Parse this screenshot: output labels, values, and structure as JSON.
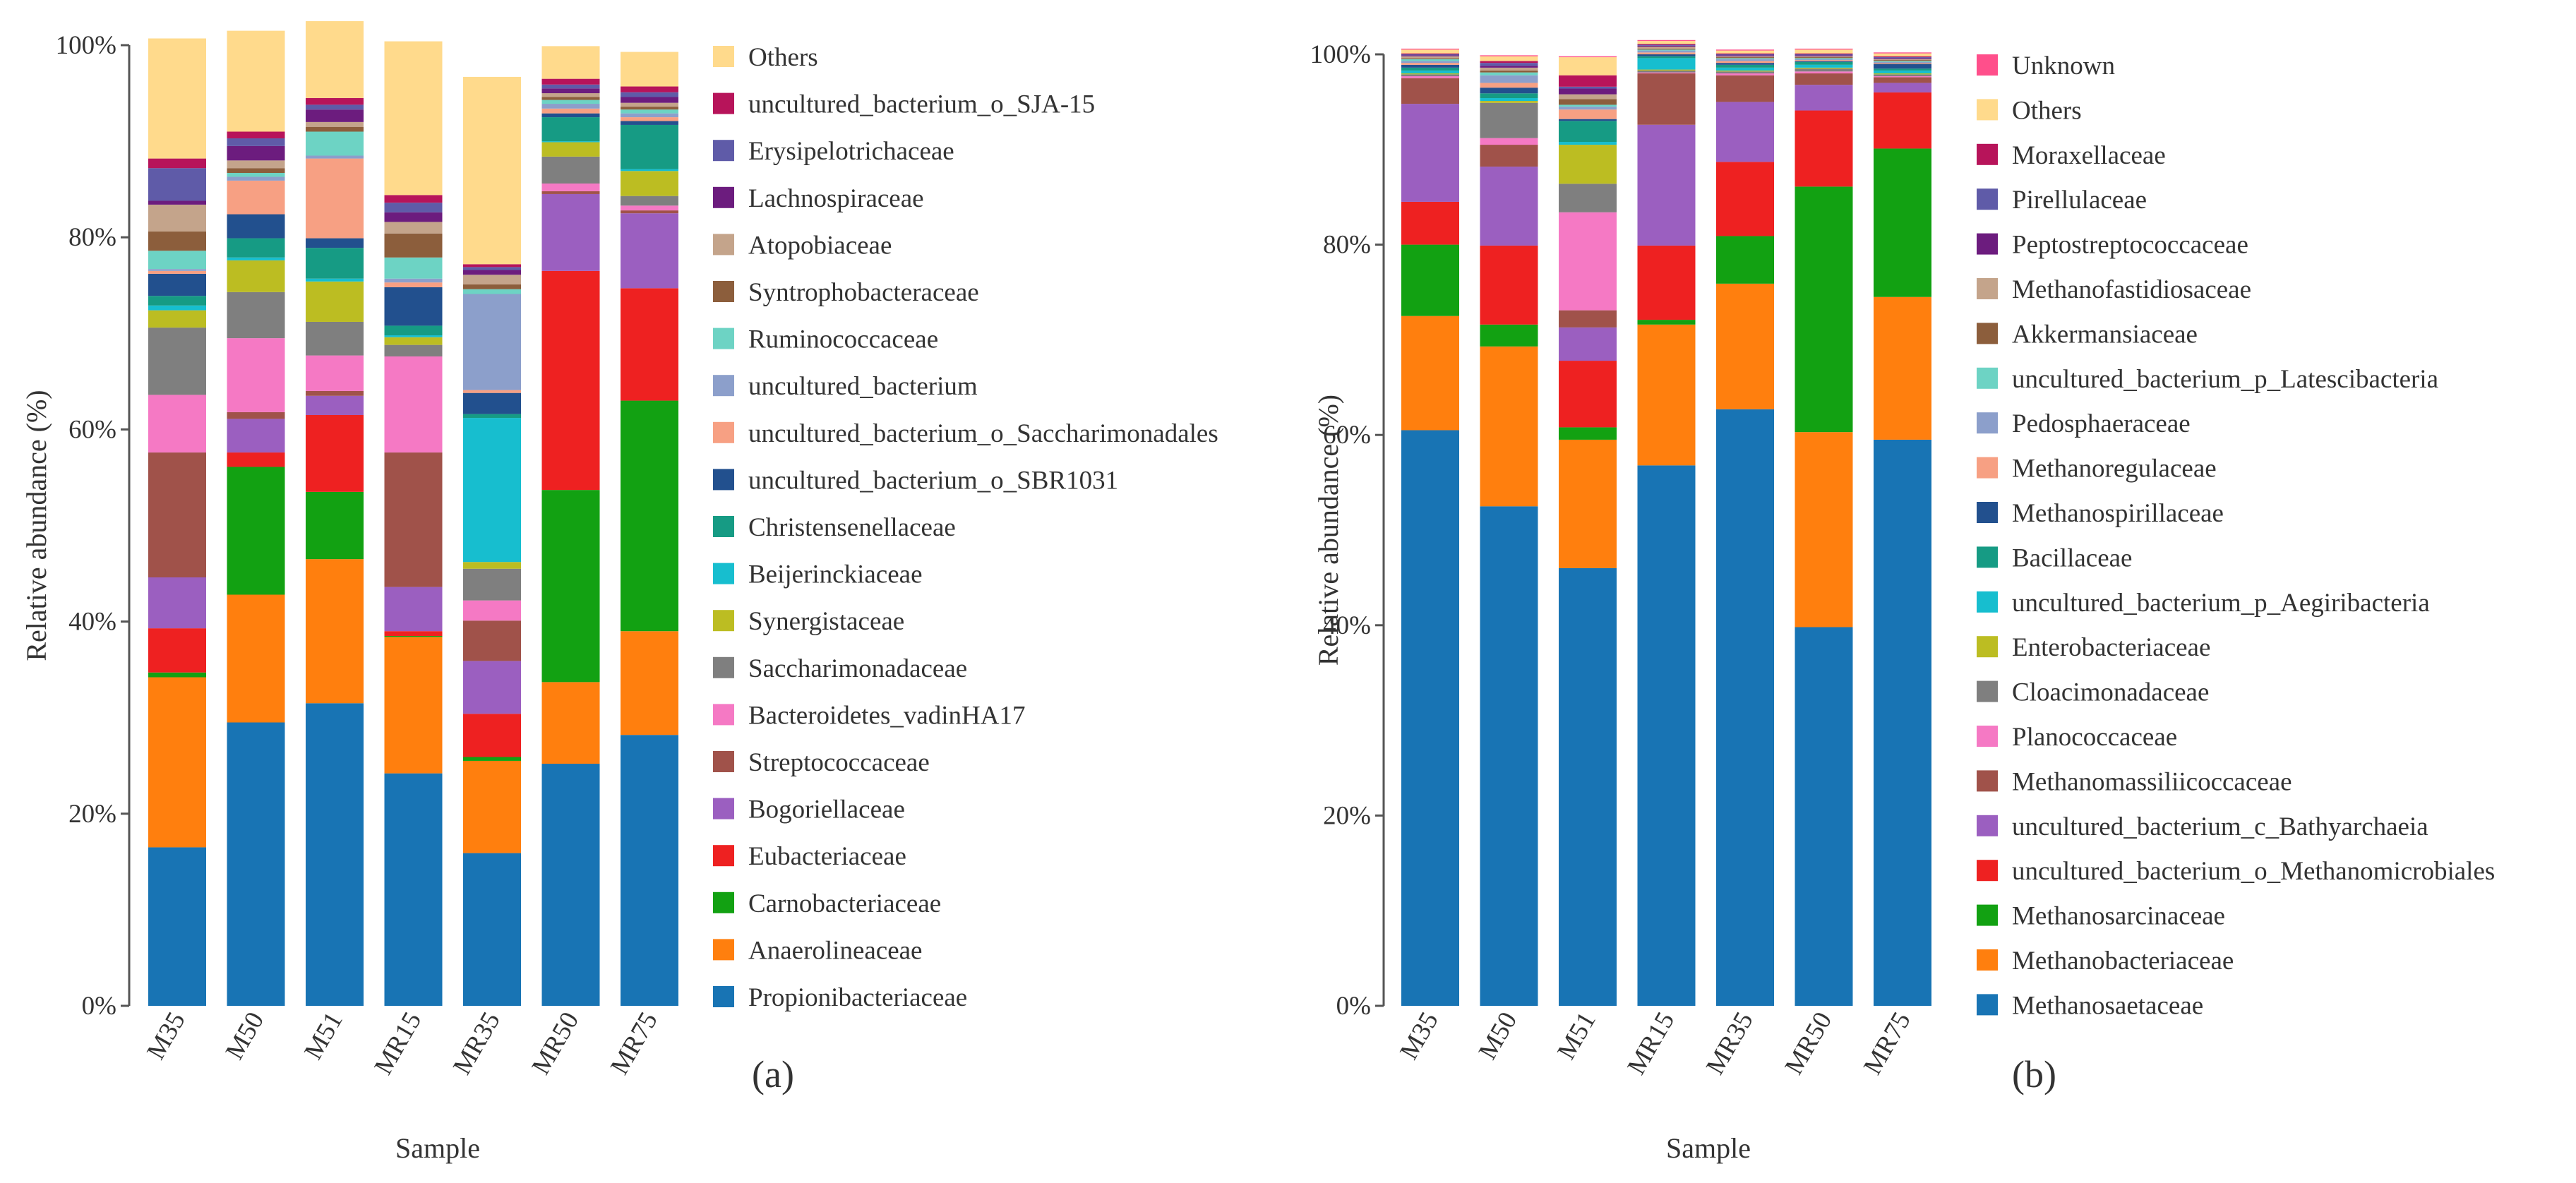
{
  "chart_data": [
    {
      "type": "bar",
      "stacked": true,
      "panel_label": "(a)",
      "xlabel": "Sample",
      "ylabel": "Relative abundance (%)",
      "ylim": [
        0,
        100
      ],
      "y_ticks": [
        "0%",
        "20%",
        "40%",
        "60%",
        "80%",
        "100%"
      ],
      "categories": [
        "M35",
        "M50",
        "M51",
        "MR15",
        "MR35",
        "MR50",
        "MR75"
      ],
      "series": [
        {
          "name": "Propionibacteriaceae",
          "color": "#1874B4",
          "values": [
            16.5,
            29.5,
            31.5,
            24.2,
            15.9,
            25.2,
            28.2
          ]
        },
        {
          "name": "Anaerolineaceae",
          "color": "#FF7F0E",
          "values": [
            17.7,
            13.3,
            15.0,
            14.2,
            9.6,
            8.5,
            10.8
          ]
        },
        {
          "name": "Carnobacteriaceae",
          "color": "#12A112",
          "values": [
            0.5,
            13.3,
            7.0,
            0.1,
            0.4,
            20.0,
            24.0
          ]
        },
        {
          "name": "Eubacteriaceae",
          "color": "#EE2121",
          "values": [
            4.6,
            1.5,
            8.0,
            0.5,
            4.5,
            22.8,
            11.7
          ]
        },
        {
          "name": "Bogoriellaceae",
          "color": "#9B5FC0",
          "values": [
            5.3,
            3.5,
            2.0,
            4.6,
            5.5,
            8.0,
            7.8
          ]
        },
        {
          "name": "Streptococcaceae",
          "color": "#A0524A",
          "values": [
            13.0,
            0.7,
            0.5,
            14.0,
            4.2,
            0.3,
            0.3
          ]
        },
        {
          "name": "Bacteroidetes_vadinHA17",
          "color": "#F579C4",
          "values": [
            6.0,
            7.7,
            3.7,
            10.0,
            2.1,
            0.8,
            0.5
          ]
        },
        {
          "name": "Saccharimonadaceae",
          "color": "#7F7F7F",
          "values": [
            7.0,
            4.8,
            3.5,
            1.2,
            3.3,
            2.8,
            1.0
          ]
        },
        {
          "name": "Synergistaceae",
          "color": "#BCBD22",
          "values": [
            1.8,
            3.3,
            4.2,
            0.8,
            0.7,
            1.5,
            2.6
          ]
        },
        {
          "name": "Beijerinckiaceae",
          "color": "#17BECF",
          "values": [
            0.5,
            0.3,
            0.3,
            0.2,
            15.0,
            0.1,
            0.2
          ]
        },
        {
          "name": "Christensenellaceae",
          "color": "#169B84",
          "values": [
            1.0,
            2.0,
            3.2,
            1.0,
            0.4,
            2.5,
            4.6
          ]
        },
        {
          "name": "uncultured_bacterium_o_SBR1031",
          "color": "#22508E",
          "values": [
            2.3,
            2.5,
            1.0,
            4.0,
            2.2,
            0.4,
            0.4
          ]
        },
        {
          "name": "uncultured_bacterium_o_Saccharimonadales",
          "color": "#F7A083",
          "values": [
            0.3,
            3.5,
            8.3,
            0.5,
            0.3,
            0.5,
            0.4
          ]
        },
        {
          "name": "uncultured_bacterium",
          "color": "#8C9FCB",
          "values": [
            0.2,
            0.4,
            0.3,
            0.4,
            10.0,
            0.5,
            0.4
          ]
        },
        {
          "name": "Ruminococcaceae",
          "color": "#6DD3C4",
          "values": [
            1.9,
            0.4,
            2.5,
            2.2,
            0.5,
            0.4,
            0.4
          ]
        },
        {
          "name": "Syntrophobacteraceae",
          "color": "#8C5E3C",
          "values": [
            2.0,
            0.5,
            0.5,
            2.5,
            0.5,
            0.3,
            0.3
          ]
        },
        {
          "name": "Atopobiaceae",
          "color": "#C4A48B",
          "values": [
            2.8,
            0.8,
            0.5,
            1.2,
            1.0,
            0.4,
            0.4
          ]
        },
        {
          "name": "Lachnospiraceae",
          "color": "#6C1C7E",
          "values": [
            0.4,
            1.5,
            1.3,
            1.0,
            0.5,
            0.5,
            0.6
          ]
        },
        {
          "name": "Erysipelotrichaceae",
          "color": "#5F5BA8",
          "values": [
            3.4,
            0.8,
            0.5,
            1.0,
            0.3,
            0.4,
            0.5
          ]
        },
        {
          "name": "uncultured_bacterium_o_SJA-15",
          "color": "#B7145A",
          "values": [
            1.0,
            0.7,
            0.7,
            0.8,
            0.3,
            0.6,
            0.6
          ]
        },
        {
          "name": "Others",
          "color": "#FFDA8C",
          "values": [
            12.5,
            10.5,
            8.0,
            16.0,
            19.5,
            3.4,
            3.6
          ]
        }
      ]
    },
    {
      "type": "bar",
      "stacked": true,
      "panel_label": "(b)",
      "xlabel": "Sample",
      "ylabel": "Relative abundance (%)",
      "ylim": [
        0,
        100
      ],
      "y_ticks": [
        "0%",
        "20%",
        "40%",
        "60%",
        "80%",
        "100%"
      ],
      "categories": [
        "M35",
        "M50",
        "M51",
        "MR15",
        "MR35",
        "MR50",
        "MR75"
      ],
      "series": [
        {
          "name": "Methanosaetaceae",
          "color": "#1874B4",
          "values": [
            60.5,
            52.5,
            46.0,
            56.8,
            62.7,
            39.8,
            59.5
          ]
        },
        {
          "name": "Methanobacteriaceae",
          "color": "#FF7F0E",
          "values": [
            12.0,
            16.8,
            13.5,
            14.8,
            13.2,
            20.5,
            15.0
          ]
        },
        {
          "name": "Methanosarcinaceae",
          "color": "#12A112",
          "values": [
            7.5,
            2.3,
            1.3,
            0.5,
            5.0,
            25.8,
            15.6
          ]
        },
        {
          "name": "uncultured_bacterium_o_Methanomicrobiales",
          "color": "#EE2121",
          "values": [
            4.5,
            8.3,
            7.0,
            7.8,
            7.8,
            8.0,
            5.9
          ]
        },
        {
          "name": "uncultured_bacterium_c_Bathyarchaeia",
          "color": "#9B5FC0",
          "values": [
            10.3,
            8.3,
            3.5,
            12.7,
            6.3,
            2.7,
            1.0
          ]
        },
        {
          "name": "Methanomassiliicoccaceae",
          "color": "#A0524A",
          "values": [
            2.7,
            2.3,
            1.8,
            5.4,
            2.8,
            1.2,
            0.6
          ]
        },
        {
          "name": "Planococcaceae",
          "color": "#F579C4",
          "values": [
            0.2,
            0.7,
            10.3,
            0.1,
            0.2,
            0.2,
            0.1
          ]
        },
        {
          "name": "Cloacimonadaceae",
          "color": "#7F7F7F",
          "values": [
            0.2,
            3.7,
            3.0,
            0.2,
            0.2,
            0.3,
            0.2
          ]
        },
        {
          "name": "Enterobacteriaceae",
          "color": "#BCBD22",
          "values": [
            0.1,
            0.2,
            4.1,
            0.1,
            0.1,
            0.1,
            0.1
          ]
        },
        {
          "name": "uncultured_bacterium_p_Aegiribacteria",
          "color": "#17BECF",
          "values": [
            0.3,
            0.3,
            0.3,
            1.2,
            0.3,
            0.3,
            0.3
          ]
        },
        {
          "name": "Bacillaceae",
          "color": "#169B84",
          "values": [
            0.3,
            0.5,
            2.2,
            0.2,
            0.3,
            0.3,
            0.2
          ]
        },
        {
          "name": "Methanospirillaceae",
          "color": "#22508E",
          "values": [
            0.3,
            0.6,
            0.2,
            0.2,
            0.2,
            0.1,
            0.5
          ]
        },
        {
          "name": "Methanoregulaceae",
          "color": "#F7A083",
          "values": [
            0.2,
            0.5,
            1.0,
            0.2,
            0.2,
            0.1,
            0.1
          ]
        },
        {
          "name": "Pedosphaeraceae",
          "color": "#8C9FCB",
          "values": [
            0.2,
            0.8,
            0.3,
            0.2,
            0.2,
            0.1,
            0.1
          ]
        },
        {
          "name": "uncultured_bacterium_p_Latescibacteria",
          "color": "#6DD3C4",
          "values": [
            0.2,
            0.3,
            0.2,
            0.1,
            0.1,
            0.1,
            0.1
          ]
        },
        {
          "name": "Akkermansiaceae",
          "color": "#8C5E3C",
          "values": [
            0.1,
            0.2,
            0.6,
            0.1,
            0.1,
            0.1,
            0.1
          ]
        },
        {
          "name": "Methanofastidiosaceae",
          "color": "#C4A48B",
          "values": [
            0.2,
            0.3,
            0.5,
            0.2,
            0.1,
            0.1,
            0.1
          ]
        },
        {
          "name": "Peptostreptococcaceae",
          "color": "#6C1C7E",
          "values": [
            0.1,
            0.2,
            0.6,
            0.1,
            0.1,
            0.1,
            0.1
          ]
        },
        {
          "name": "Pirellulaceae",
          "color": "#5F5BA8",
          "values": [
            0.1,
            0.3,
            0.2,
            0.1,
            0.1,
            0.1,
            0.1
          ]
        },
        {
          "name": "Moraxellaceae",
          "color": "#B7145A",
          "values": [
            0.1,
            0.2,
            1.2,
            0.1,
            0.1,
            0.1,
            0.1
          ]
        },
        {
          "name": "Others",
          "color": "#FFDA8C",
          "values": [
            0.4,
            0.5,
            1.9,
            0.3,
            0.3,
            0.4,
            0.3
          ]
        },
        {
          "name": "Unknown",
          "color": "#FF4F8B",
          "values": [
            0.1,
            0.1,
            0.1,
            0.1,
            0.1,
            0.1,
            0.1
          ]
        }
      ]
    }
  ]
}
